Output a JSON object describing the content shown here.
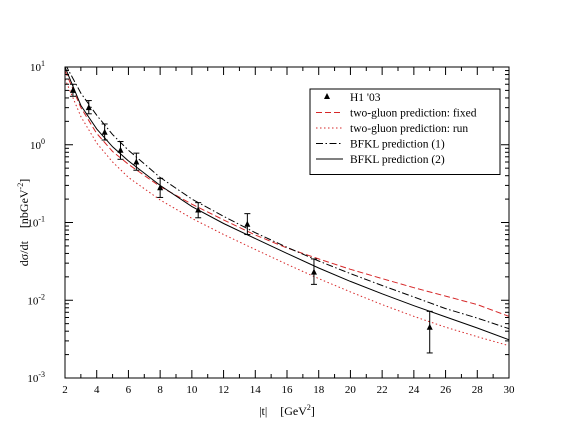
{
  "chart_data": {
    "type": "line",
    "title": "",
    "xlabel": "|t|",
    "xlabel_unit_base": "[GeV",
    "xlabel_unit_exp": "2",
    "xlabel_unit_close": "]",
    "ylabel": "dσ/dt",
    "ylabel_unit_base": "[nbGeV",
    "ylabel_unit_exp": "-2",
    "ylabel_unit_close": "]",
    "xlim": [
      2,
      30
    ],
    "ylim": [
      0.001,
      10
    ],
    "yscale": "log",
    "grid": false,
    "legend_position": "top-right",
    "x_ticks": [
      2,
      4,
      6,
      8,
      10,
      12,
      14,
      16,
      18,
      20,
      22,
      24,
      26,
      28,
      30
    ],
    "y_ticks": [
      {
        "value": 10,
        "base": "10",
        "exp": "1"
      },
      {
        "value": 1,
        "base": "10",
        "exp": "0"
      },
      {
        "value": 0.1,
        "base": "10",
        "exp": "-1"
      },
      {
        "value": 0.01,
        "base": "10",
        "exp": "-2"
      },
      {
        "value": 0.001,
        "base": "10",
        "exp": "-3"
      }
    ],
    "data_points": {
      "name": "H1 '03",
      "color": "#000000",
      "points": [
        {
          "x": 2.5,
          "y": 5.0,
          "ylo": 4.2,
          "yhi": 6.0
        },
        {
          "x": 3.5,
          "y": 3.0,
          "ylo": 2.5,
          "yhi": 3.7
        },
        {
          "x": 4.5,
          "y": 1.45,
          "ylo": 1.15,
          "yhi": 1.85
        },
        {
          "x": 5.5,
          "y": 0.85,
          "ylo": 0.65,
          "yhi": 1.1
        },
        {
          "x": 6.5,
          "y": 0.6,
          "ylo": 0.47,
          "yhi": 0.78
        },
        {
          "x": 8.0,
          "y": 0.28,
          "ylo": 0.21,
          "yhi": 0.37
        },
        {
          "x": 10.4,
          "y": 0.145,
          "ylo": 0.115,
          "yhi": 0.18
        },
        {
          "x": 13.5,
          "y": 0.095,
          "ylo": 0.07,
          "yhi": 0.13
        },
        {
          "x": 17.7,
          "y": 0.023,
          "ylo": 0.016,
          "yhi": 0.034
        },
        {
          "x": 25.0,
          "y": 0.0045,
          "ylo": 0.0021,
          "yhi": 0.0072
        }
      ]
    },
    "series": [
      {
        "name": "two-gluon prediction: fixed",
        "color": "#d62728",
        "dash": "6,3",
        "x": [
          2,
          3,
          4,
          5,
          6,
          8,
          10,
          12,
          14,
          16,
          18,
          20,
          22,
          24,
          26,
          28,
          30
        ],
        "y": [
          9.0,
          3.0,
          1.4,
          0.82,
          0.56,
          0.29,
          0.172,
          0.108,
          0.069,
          0.047,
          0.034,
          0.025,
          0.019,
          0.0145,
          0.0113,
          0.0088,
          0.0062
        ]
      },
      {
        "name": "two-gluon prediction: run",
        "color": "#d62728",
        "dash": "1.5,2.5",
        "x": [
          2,
          3,
          4,
          5,
          6,
          8,
          10,
          12,
          14,
          16,
          18,
          20,
          22,
          24,
          26,
          28,
          30
        ],
        "y": [
          7.0,
          2.3,
          1.05,
          0.6,
          0.38,
          0.195,
          0.113,
          0.07,
          0.045,
          0.029,
          0.019,
          0.0128,
          0.0088,
          0.0062,
          0.0045,
          0.0034,
          0.0026
        ]
      },
      {
        "name": "BFKL prediction (1)",
        "color": "#000000",
        "dash": "7,2.5,1.5,2.5",
        "x": [
          2,
          3,
          4,
          5,
          6,
          8,
          10,
          12,
          14,
          16,
          18,
          20,
          22,
          24,
          26,
          28,
          30
        ],
        "y": [
          11.0,
          4.6,
          2.4,
          1.35,
          0.85,
          0.38,
          0.2,
          0.12,
          0.074,
          0.048,
          0.032,
          0.022,
          0.0155,
          0.011,
          0.0078,
          0.0059,
          0.0043
        ]
      },
      {
        "name": "BFKL prediction (2)",
        "color": "#000000",
        "dash": "",
        "x": [
          2,
          3,
          4,
          5,
          6,
          8,
          10,
          12,
          14,
          16,
          18,
          20,
          22,
          24,
          26,
          28,
          30
        ],
        "y": [
          10.0,
          3.2,
          1.6,
          0.94,
          0.62,
          0.3,
          0.16,
          0.097,
          0.062,
          0.04,
          0.026,
          0.0175,
          0.0121,
          0.0085,
          0.0061,
          0.0044,
          0.0031
        ]
      }
    ]
  }
}
